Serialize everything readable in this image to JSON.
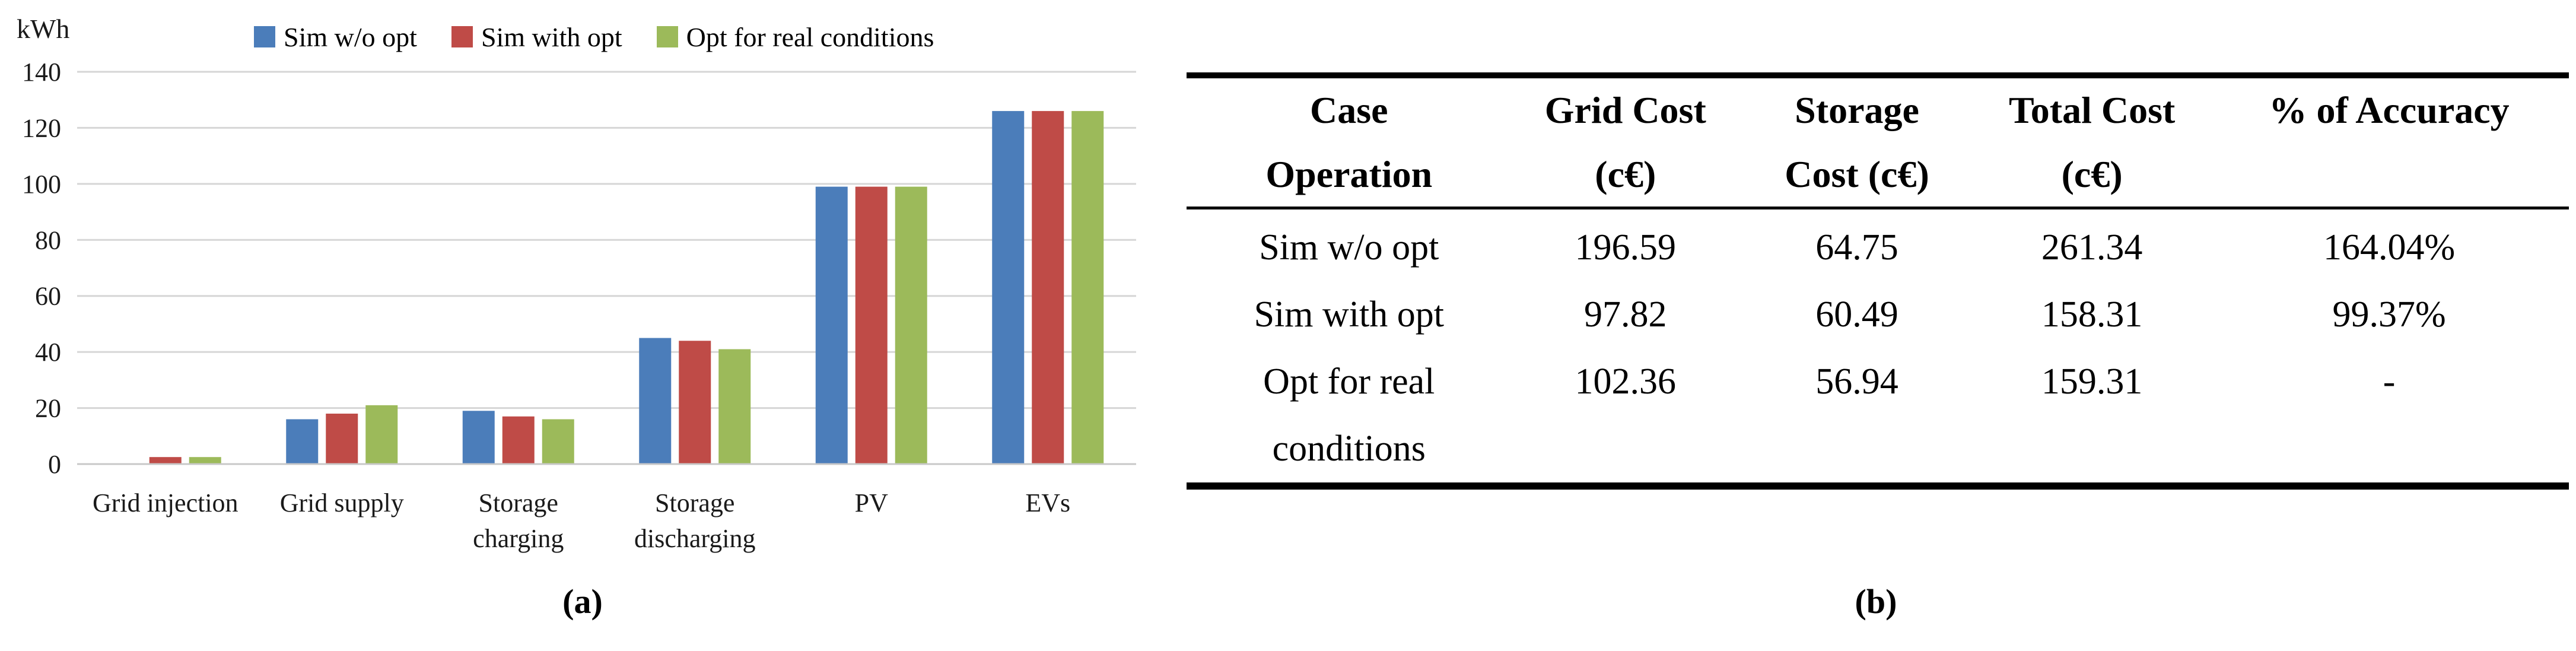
{
  "figure": {
    "captions": {
      "a": "(a)",
      "b": "(b)"
    }
  },
  "chart_data": {
    "type": "bar",
    "title": "",
    "unit_label": "kWh",
    "xlabel": "",
    "ylabel": "kWh",
    "categories": [
      "Grid injection",
      "Grid supply",
      "Storage charging",
      "Storage discharging",
      "PV",
      "EVs"
    ],
    "category_label_lines": [
      [
        "Grid injection"
      ],
      [
        "Grid supply"
      ],
      [
        "Storage",
        "charging"
      ],
      [
        "Storage",
        "discharging"
      ],
      [
        "PV"
      ],
      [
        "EVs"
      ]
    ],
    "series": [
      {
        "name": "Sim w/o opt",
        "color": "#4b7dba",
        "values": [
          0,
          16,
          19,
          45,
          99,
          126
        ]
      },
      {
        "name": "Sim with opt",
        "color": "#bf4b47",
        "values": [
          2.5,
          18,
          17,
          44,
          99,
          126
        ]
      },
      {
        "name": "Opt for real conditions",
        "color": "#9cba5a",
        "values": [
          2.5,
          21,
          16,
          41,
          99,
          126
        ]
      }
    ],
    "ylim": [
      0,
      140
    ],
    "ytick_step": 20,
    "grid": true,
    "legend_position": "top",
    "gridline_color": "#d6d6d6",
    "axis_color": "#c8c8c8",
    "tick_label_color": "#1a1a1a"
  },
  "table": {
    "headers": [
      {
        "l1": "Case",
        "l2": "Operation"
      },
      {
        "l1": "Grid Cost",
        "l2": "(c€)"
      },
      {
        "l1": "Storage",
        "l2": "Cost (c€)"
      },
      {
        "l1": "Total Cost",
        "l2": "(c€)"
      },
      {
        "l1": "% of Accuracy",
        "l2": ""
      }
    ],
    "rows": [
      {
        "case_l1": "Sim w/o opt",
        "case_l2": "",
        "grid": "196.59",
        "storage": "64.75",
        "total": "261.34",
        "accuracy": "164.04%"
      },
      {
        "case_l1": "Sim with opt",
        "case_l2": "",
        "grid": "97.82",
        "storage": "60.49",
        "total": "158.31",
        "accuracy": "99.37%"
      },
      {
        "case_l1": "Opt for real",
        "case_l2": "conditions",
        "grid": "102.36",
        "storage": "56.94",
        "total": "159.31",
        "accuracy": "-"
      }
    ]
  }
}
